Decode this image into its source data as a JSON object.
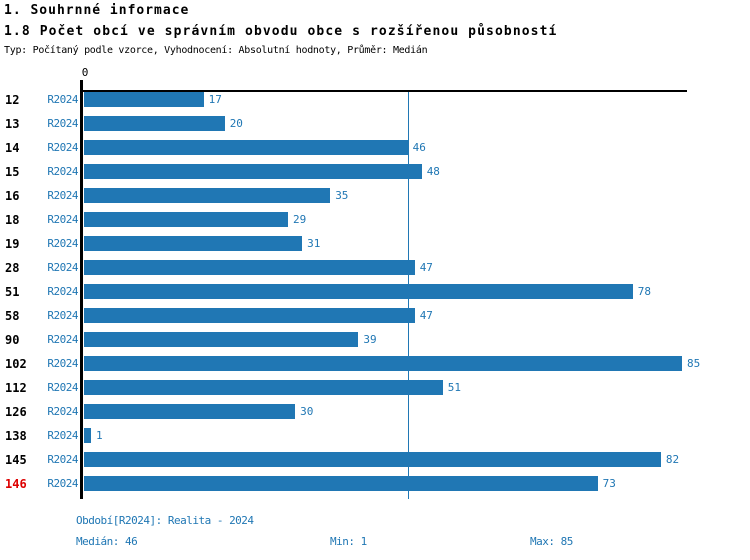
{
  "header": {
    "title": "1. Souhrnné informace",
    "subtitle": "1.8 Počet obcí ve správním obvodu obce s rozšířenou působností",
    "meta": "Typ: Počítaný podle vzorce, Vyhodnocení: Absolutní hodnoty, Průměr: Medián"
  },
  "chart_data": {
    "type": "bar",
    "orientation": "horizontal",
    "title": "1.8 Počet obcí ve správním obvodu obce s rozšířenou působností",
    "categories": [
      "12",
      "13",
      "14",
      "15",
      "16",
      "18",
      "19",
      "28",
      "51",
      "58",
      "90",
      "102",
      "112",
      "126",
      "138",
      "145",
      "146"
    ],
    "series_label": "R2024",
    "values": [
      17,
      20,
      46,
      48,
      35,
      29,
      31,
      47,
      78,
      47,
      39,
      85,
      51,
      30,
      1,
      82,
      73
    ],
    "highlight_category": "146",
    "xlim": [
      0,
      85
    ],
    "zero_tick_label": "0",
    "median_line_value": 46,
    "grid": false,
    "legend": "none",
    "bar_color": "#2077b4",
    "highlight_color": "#dd0000",
    "axis_color": "#000000"
  },
  "footer": {
    "period": "Období[R2024]: Realita - 2024",
    "median": "Medián: 46",
    "min": "Min: 1",
    "max": "Max: 85"
  }
}
